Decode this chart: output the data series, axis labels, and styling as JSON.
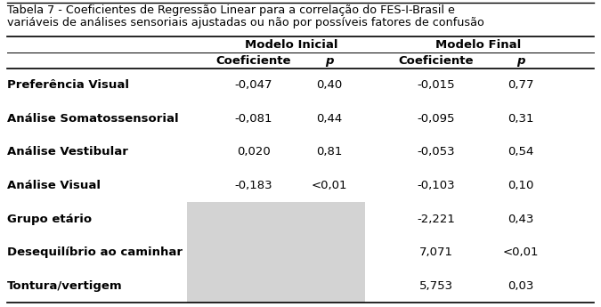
{
  "title_line1": "Tabela 7 - Coeficientes de Regressão Linear para a correlação do FES-I-Brasil e",
  "title_line2": "variáveis de análises sensoriais ajustadas ou não por possíveis fatores de confusão",
  "header1": "Modelo Inicial",
  "header2": "Modelo Final",
  "col_headers": [
    "Coeficiente",
    "p",
    "Coeficiente",
    "p"
  ],
  "rows": [
    {
      "label": "Preferência Visual",
      "mi_coef": "-0,047",
      "mi_p": "0,40",
      "mf_coef": "-0,015",
      "mf_p": "0,77",
      "shaded": false
    },
    {
      "label": "Análise Somatossensorial",
      "mi_coef": "-0,081",
      "mi_p": "0,44",
      "mf_coef": "-0,095",
      "mf_p": "0,31",
      "shaded": false
    },
    {
      "label": "Análise Vestibular",
      "mi_coef": "0,020",
      "mi_p": "0,81",
      "mf_coef": "-0,053",
      "mf_p": "0,54",
      "shaded": false
    },
    {
      "label": "Análise Visual",
      "mi_coef": "-0,183",
      "mi_p": "<0,01",
      "mf_coef": "-0,103",
      "mf_p": "0,10",
      "shaded": false
    },
    {
      "label": "Grupo etário",
      "mi_coef": "",
      "mi_p": "",
      "mf_coef": "-2,221",
      "mf_p": "0,43",
      "shaded": true
    },
    {
      "label": "Desequilíbrio ao caminhar",
      "mi_coef": "",
      "mi_p": "",
      "mf_coef": "7,071",
      "mf_p": "<0,01",
      "shaded": true
    },
    {
      "label": "Tontura/vertigem",
      "mi_coef": "",
      "mi_p": "",
      "mf_coef": "5,753",
      "mf_p": "0,03",
      "shaded": true
    }
  ],
  "shade_color": "#d3d3d3",
  "line_color": "#000000",
  "bg_color": "#ffffff",
  "title_fontsize": 9.2,
  "header_fontsize": 9.5,
  "cell_fontsize": 9.5,
  "label_fontsize": 9.5
}
